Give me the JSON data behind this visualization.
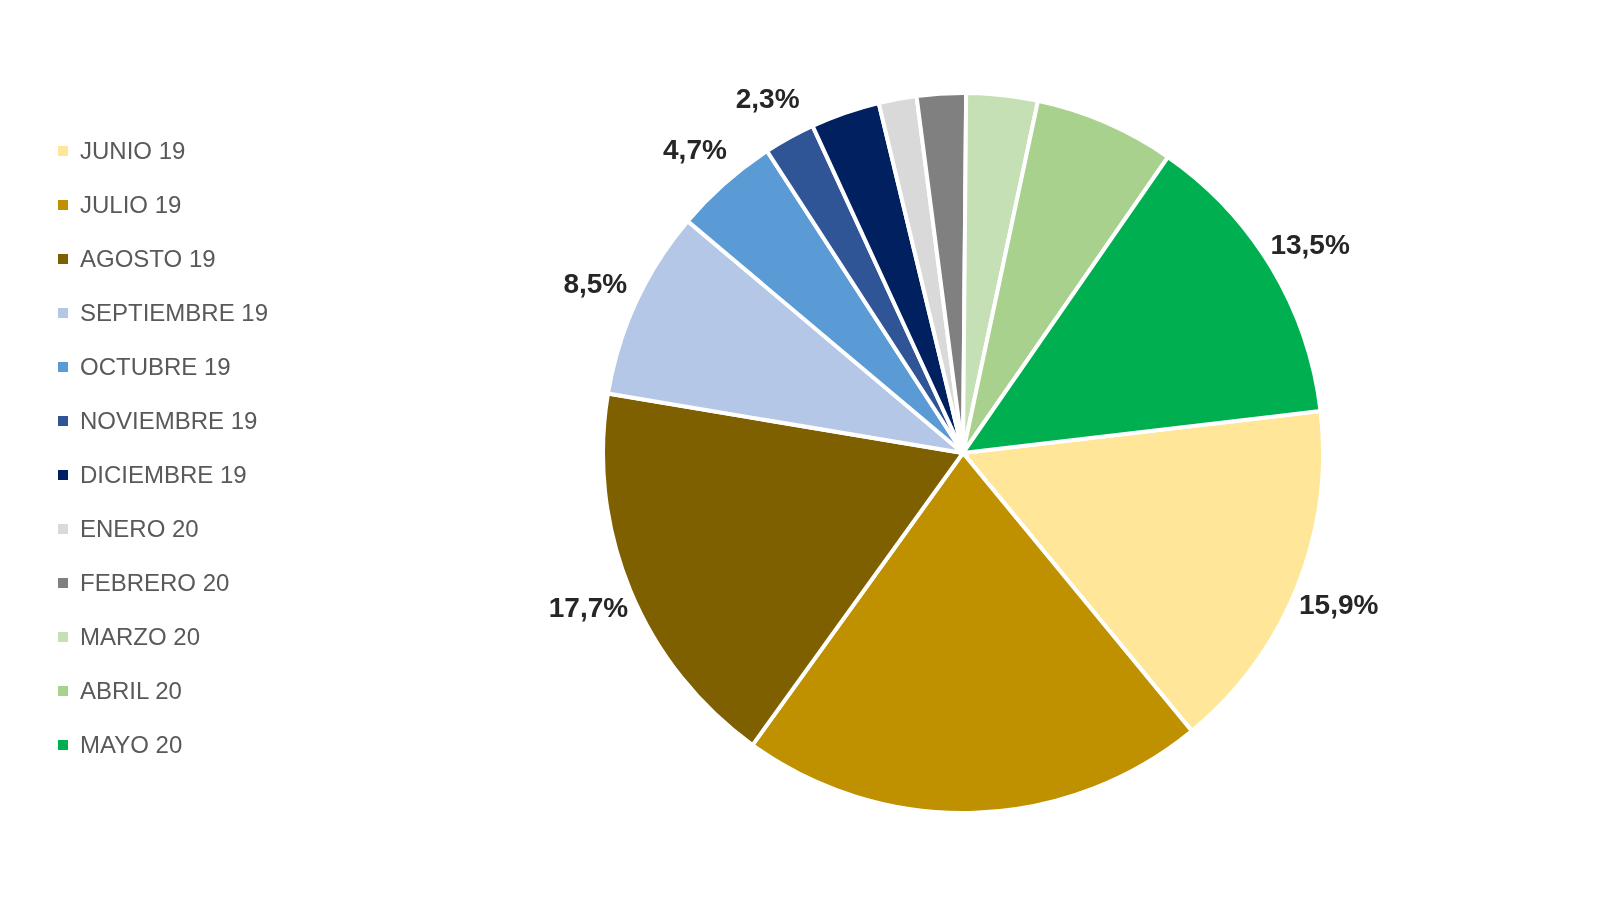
{
  "chart_data": {
    "type": "pie",
    "categories": [
      "JUNIO 19",
      "JULIO 19",
      "AGOSTO 19",
      "SEPTIEMBRE 19",
      "OCTUBRE 19",
      "NOVIEMBRE 19",
      "DICIEMBRE 19",
      "ENERO 20",
      "FEBRERO 20",
      "MARZO 20",
      "ABRIL 20",
      "MAYO 20"
    ],
    "values": [
      15.9,
      20.9,
      17.7,
      8.5,
      4.7,
      2.3,
      3.1,
      1.7,
      2.2,
      3.2,
      6.3,
      13.5
    ],
    "colors": [
      "#ffe699",
      "#bf9000",
      "#7f6000",
      "#b4c7e7",
      "#5b9bd5",
      "#2f5597",
      "#002060",
      "#d9d9d9",
      "#808080",
      "#c5e0b4",
      "#a9d18e",
      "#00b050"
    ],
    "value_labels": [
      "15,9%",
      null,
      "17,7%",
      "8,5%",
      "4,7%",
      "2,3%",
      null,
      null,
      null,
      null,
      null,
      "13,5%"
    ],
    "legend": "left"
  }
}
